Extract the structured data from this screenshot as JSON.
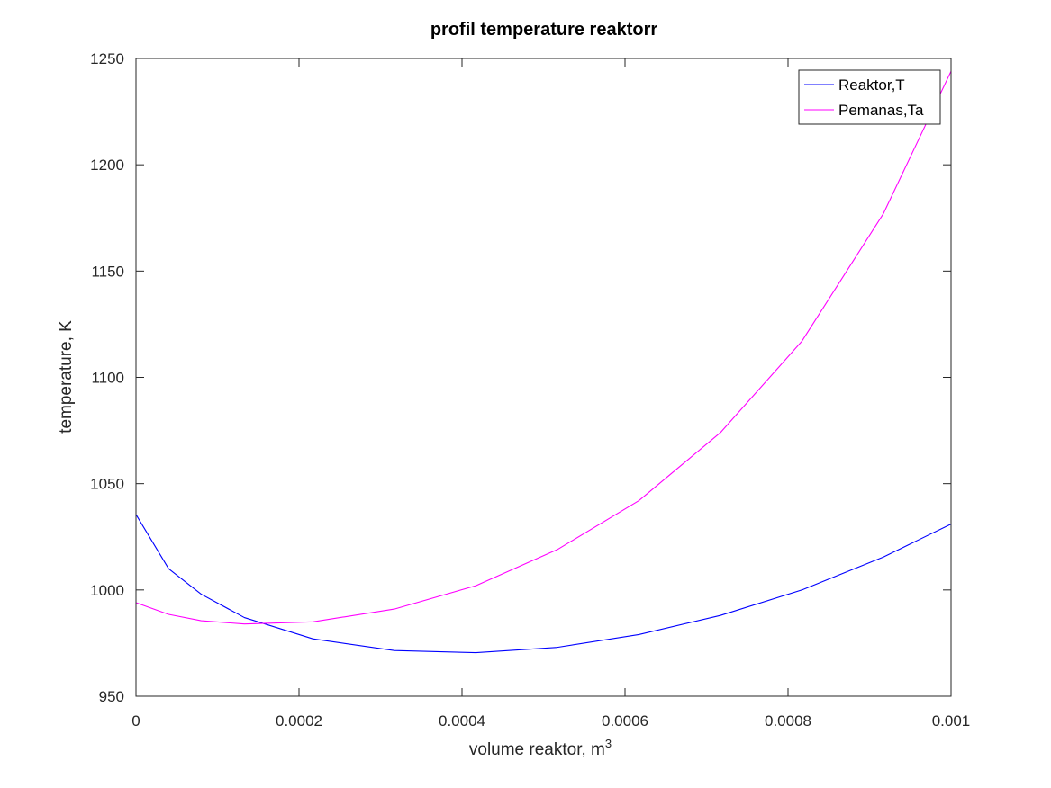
{
  "chart_data": {
    "type": "line",
    "title": "profil temperature reaktorr",
    "xlabel": "volume reaktor, m",
    "xlabel_superscript": "3",
    "ylabel": "temperature, K",
    "xlim": [
      0,
      0.001
    ],
    "ylim": [
      950,
      1250
    ],
    "x_ticks": [
      0,
      0.0002,
      0.0004,
      0.0006,
      0.0008,
      0.001
    ],
    "x_tick_labels": [
      "0",
      "0.0002",
      "0.0004",
      "0.0006",
      "0.0008",
      "0.001"
    ],
    "y_ticks": [
      950,
      1000,
      1050,
      1100,
      1150,
      1200,
      1250
    ],
    "y_tick_labels": [
      "950",
      "1000",
      "1050",
      "1100",
      "1150",
      "1200",
      "1250"
    ],
    "grid": false,
    "legend_position": "top-right",
    "series": [
      {
        "name": "Reaktor,T",
        "color": "#0000ff",
        "x": [
          0,
          4e-05,
          8e-05,
          0.000133,
          0.000217,
          0.000317,
          0.000417,
          0.000517,
          0.000617,
          0.000717,
          0.000817,
          0.000917,
          0.001
        ],
        "y": [
          1035.5,
          1010,
          998,
          987,
          977,
          971.5,
          970.5,
          973,
          979,
          988,
          1000,
          1015.5,
          1031
        ]
      },
      {
        "name": "Pemanas,Ta",
        "color": "#ff00ff",
        "x": [
          0,
          4e-05,
          8e-05,
          0.000133,
          0.000217,
          0.000317,
          0.000417,
          0.000517,
          0.000617,
          0.000717,
          0.000817,
          0.000917,
          0.001
        ],
        "y": [
          994,
          988.5,
          985.5,
          984,
          985,
          991,
          1002,
          1019,
          1042,
          1074,
          1117,
          1177,
          1244
        ]
      }
    ]
  }
}
